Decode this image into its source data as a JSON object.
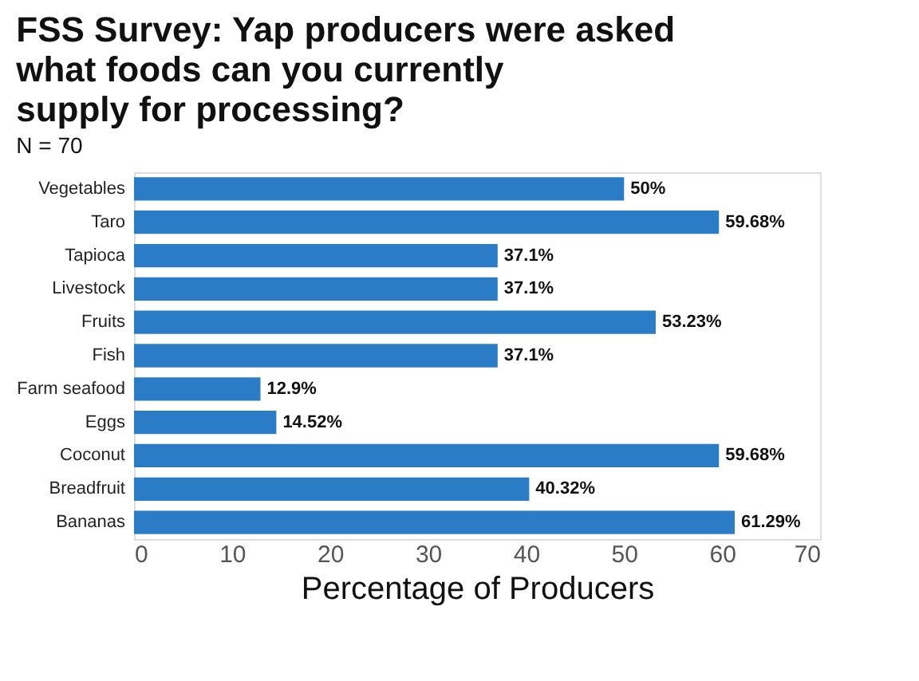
{
  "chart_data": {
    "type": "bar",
    "orientation": "horizontal",
    "title": "FSS Survey: Yap producers were asked\nwhat foods can you currently\nsupply for processing?",
    "subtitle": "N = 70",
    "xlabel": "Percentage of Producers",
    "categories": [
      "Vegetables",
      "Taro",
      "Tapioca",
      "Livestock",
      "Fruits",
      "Fish",
      "Farm seafood",
      "Eggs",
      "Coconut",
      "Breadfruit",
      "Bananas"
    ],
    "values": [
      50,
      59.68,
      37.1,
      37.1,
      53.23,
      37.1,
      12.9,
      14.52,
      59.68,
      40.32,
      61.29
    ],
    "value_labels": [
      "50%",
      "59.68%",
      "37.1%",
      "37.1%",
      "53.23%",
      "37.1%",
      "12.9%",
      "14.52%",
      "59.68%",
      "40.32%",
      "61.29%"
    ],
    "color": "#2b7cc7",
    "xlim": [
      0,
      70
    ],
    "xticks": [
      0,
      10,
      20,
      30,
      40,
      50,
      60,
      70
    ],
    "grid": false
  }
}
